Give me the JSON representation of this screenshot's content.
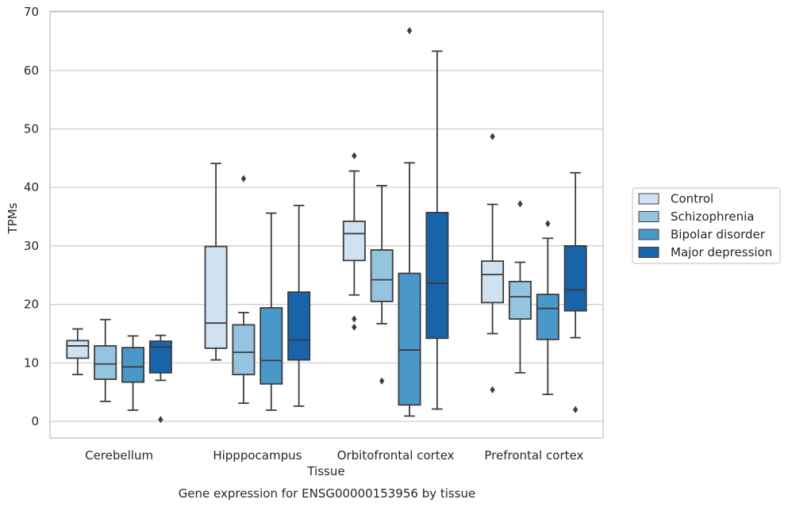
{
  "chart_data": {
    "type": "box",
    "caption": "Gene expression for ENSG00000153956 by tissue",
    "xlabel": "Tissue",
    "ylabel": "TPMs",
    "ylim": [
      -3,
      70
    ],
    "yticks": [
      0,
      10,
      20,
      30,
      40,
      50,
      60,
      70
    ],
    "grid": "horizontal",
    "legend": {
      "placement": "right",
      "title": ""
    },
    "categories": [
      "Cerebellum",
      "Hipppocampus",
      "Orbitofrontal cortex",
      "Prefrontal cortex"
    ],
    "series": [
      {
        "name": "Control",
        "color": "#d0e1f2",
        "boxes": [
          {
            "whislo": 8.0,
            "q1": 10.8,
            "med": 12.9,
            "q3": 13.8,
            "whishi": 15.8,
            "fliers": []
          },
          {
            "whislo": 10.5,
            "q1": 12.5,
            "med": 16.8,
            "q3": 29.9,
            "whishi": 44.1,
            "fliers": []
          },
          {
            "whislo": 21.6,
            "q1": 27.5,
            "med": 32.1,
            "q3": 34.2,
            "whishi": 42.8,
            "fliers": [
              45.4,
              17.5,
              16.1
            ]
          },
          {
            "whislo": 15.0,
            "q1": 20.3,
            "med": 25.1,
            "q3": 27.4,
            "whishi": 37.1,
            "fliers": [
              48.7,
              5.4
            ]
          }
        ]
      },
      {
        "name": "Schizophrenia",
        "color": "#94c4df",
        "boxes": [
          {
            "whislo": 3.4,
            "q1": 7.2,
            "med": 9.8,
            "q3": 12.9,
            "whishi": 17.4,
            "fliers": []
          },
          {
            "whislo": 3.1,
            "q1": 8.0,
            "med": 11.8,
            "q3": 16.5,
            "whishi": 18.6,
            "fliers": [
              41.5
            ]
          },
          {
            "whislo": 16.7,
            "q1": 20.5,
            "med": 24.2,
            "q3": 29.3,
            "whishi": 40.3,
            "fliers": [
              6.9
            ]
          },
          {
            "whislo": 8.3,
            "q1": 17.5,
            "med": 21.3,
            "q3": 23.9,
            "whishi": 27.2,
            "fliers": [
              37.2
            ]
          }
        ]
      },
      {
        "name": "Bipolar disorder",
        "color": "#4a98c9",
        "boxes": [
          {
            "whislo": 1.9,
            "q1": 6.7,
            "med": 9.3,
            "q3": 12.6,
            "whishi": 14.6,
            "fliers": []
          },
          {
            "whislo": 1.9,
            "q1": 6.4,
            "med": 10.4,
            "q3": 19.4,
            "whishi": 35.6,
            "fliers": []
          },
          {
            "whislo": 0.9,
            "q1": 2.8,
            "med": 12.2,
            "q3": 25.3,
            "whishi": 44.2,
            "fliers": [
              66.8
            ]
          },
          {
            "whislo": 4.6,
            "q1": 14.0,
            "med": 19.3,
            "q3": 21.7,
            "whishi": 31.3,
            "fliers": [
              33.8
            ]
          }
        ]
      },
      {
        "name": "Major depression",
        "color": "#1764ab",
        "boxes": [
          {
            "whislo": 7.0,
            "q1": 8.3,
            "med": 12.7,
            "q3": 13.7,
            "whishi": 14.7,
            "fliers": [
              0.3
            ]
          },
          {
            "whislo": 2.6,
            "q1": 10.5,
            "med": 13.9,
            "q3": 22.1,
            "whishi": 36.9,
            "fliers": []
          },
          {
            "whislo": 2.1,
            "q1": 14.2,
            "med": 23.6,
            "q3": 35.7,
            "whishi": 63.3,
            "fliers": []
          },
          {
            "whislo": 14.3,
            "q1": 18.9,
            "med": 22.5,
            "q3": 30.0,
            "whishi": 42.5,
            "fliers": [
              2.0
            ]
          }
        ]
      }
    ]
  }
}
